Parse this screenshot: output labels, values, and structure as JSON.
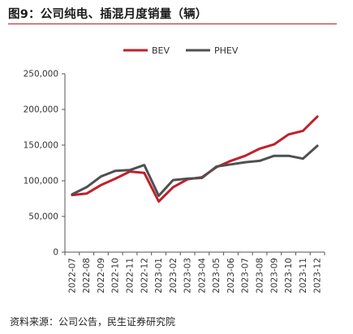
{
  "title": "图9：公司纯电、插混月度销量（辆）",
  "source": "资料来源：公司公告，民生证券研究院",
  "chart_data": {
    "type": "line",
    "x": [
      "2022-07",
      "2022-08",
      "2022-09",
      "2022-10",
      "2022-11",
      "2022-12",
      "2023-01",
      "2023-02",
      "2023-03",
      "2023-04",
      "2023-05",
      "2023-06",
      "2023-07",
      "2023-08",
      "2023-09",
      "2023-10",
      "2023-11",
      "2023-12"
    ],
    "series": [
      {
        "name": "BEV",
        "color": "#c0202b",
        "values": [
          80000,
          82000,
          94000,
          103000,
          113000,
          111000,
          71000,
          91000,
          102000,
          105000,
          119000,
          128000,
          135000,
          145000,
          151000,
          165000,
          170000,
          190000
        ]
      },
      {
        "name": "PHEV",
        "color": "#505050",
        "values": [
          81000,
          91000,
          106000,
          114000,
          115000,
          122000,
          79000,
          101000,
          103000,
          104000,
          120000,
          123000,
          126000,
          128000,
          135000,
          135000,
          131000,
          149000
        ]
      }
    ],
    "yticks": [
      "0",
      "50,000",
      "100,000",
      "150,000",
      "200,000",
      "250,000"
    ],
    "ylim": [
      0,
      250000
    ],
    "legend": "top-left",
    "grid": false
  }
}
